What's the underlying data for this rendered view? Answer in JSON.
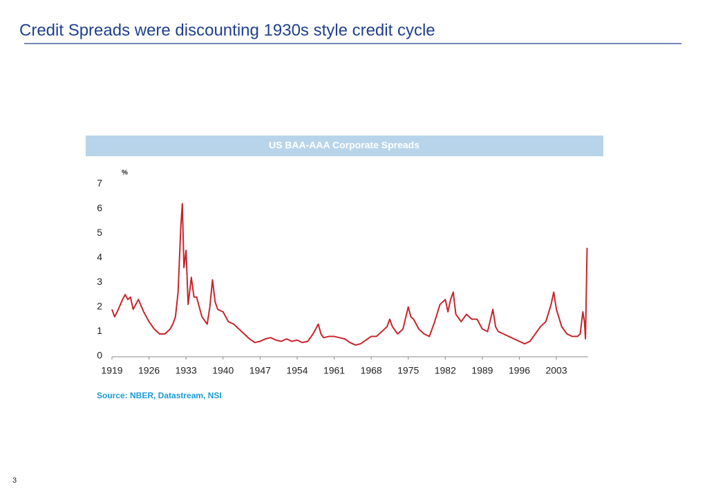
{
  "title": "Credit Spreads were discounting 1930s style credit cycle",
  "page_number": "3",
  "chart_data": {
    "type": "line",
    "title": "US BAA-AAA Corporate Spreads",
    "y_label": "%",
    "source": "Source: NBER, Datastream, NSI",
    "color": "#c8242b",
    "grid": false,
    "xlim": [
      1919,
      2009
    ],
    "xticks": [
      1919,
      1926,
      1933,
      1940,
      1947,
      1954,
      1961,
      1968,
      1975,
      1982,
      1989,
      1996,
      2003
    ],
    "ylim": [
      0,
      7
    ],
    "yticks": [
      0,
      1,
      2,
      3,
      4,
      5,
      6,
      7
    ],
    "x": [
      1919,
      1919.5,
      1920,
      1921,
      1921.5,
      1922,
      1922.5,
      1923,
      1924,
      1925,
      1926,
      1927,
      1928,
      1929,
      1930,
      1930.5,
      1931,
      1931.5,
      1932,
      1932.3,
      1932.6,
      1933,
      1933.4,
      1934,
      1934.5,
      1935,
      1936,
      1937,
      1937.5,
      1938,
      1938.5,
      1939,
      1940,
      1941,
      1942,
      1943,
      1944,
      1945,
      1946,
      1947,
      1948,
      1949,
      1950,
      1951,
      1952,
      1953,
      1954,
      1955,
      1956,
      1957,
      1958,
      1958.5,
      1959,
      1960,
      1961,
      1962,
      1963,
      1964,
      1965,
      1966,
      1967,
      1968,
      1969,
      1970,
      1971,
      1971.5,
      1972,
      1973,
      1974,
      1975,
      1975.5,
      1976,
      1977,
      1978,
      1979,
      1980,
      1981,
      1982,
      1982.5,
      1983,
      1983.5,
      1984,
      1985,
      1986,
      1987,
      1988,
      1989,
      1990,
      1991,
      1991.5,
      1992,
      1993,
      1994,
      1995,
      1996,
      1997,
      1998,
      1999,
      2000,
      2001,
      2002,
      2002.5,
      2003,
      2004,
      2005,
      2006,
      2007,
      2007.5,
      2008,
      2008.3,
      2008.5,
      2008.8
    ],
    "values": [
      1.9,
      1.6,
      1.8,
      2.3,
      2.5,
      2.3,
      2.4,
      1.9,
      2.3,
      1.8,
      1.4,
      1.1,
      0.9,
      0.9,
      1.1,
      1.3,
      1.6,
      2.6,
      5.2,
      6.2,
      3.6,
      4.3,
      2.1,
      3.2,
      2.4,
      2.4,
      1.6,
      1.3,
      2.0,
      3.1,
      2.2,
      1.9,
      1.8,
      1.4,
      1.3,
      1.1,
      0.9,
      0.7,
      0.55,
      0.6,
      0.7,
      0.75,
      0.65,
      0.6,
      0.7,
      0.6,
      0.65,
      0.55,
      0.6,
      0.9,
      1.3,
      0.9,
      0.75,
      0.8,
      0.8,
      0.75,
      0.7,
      0.55,
      0.45,
      0.5,
      0.65,
      0.8,
      0.8,
      1.0,
      1.2,
      1.5,
      1.2,
      0.9,
      1.1,
      2.0,
      1.6,
      1.5,
      1.1,
      0.9,
      0.8,
      1.4,
      2.1,
      2.3,
      1.8,
      2.3,
      2.6,
      1.7,
      1.4,
      1.7,
      1.5,
      1.5,
      1.1,
      1.0,
      1.9,
      1.2,
      1.0,
      0.9,
      0.8,
      0.7,
      0.6,
      0.5,
      0.6,
      0.9,
      1.2,
      1.4,
      2.1,
      2.6,
      1.9,
      1.2,
      0.9,
      0.8,
      0.8,
      0.9,
      1.8,
      1.4,
      0.7,
      4.4
    ]
  }
}
